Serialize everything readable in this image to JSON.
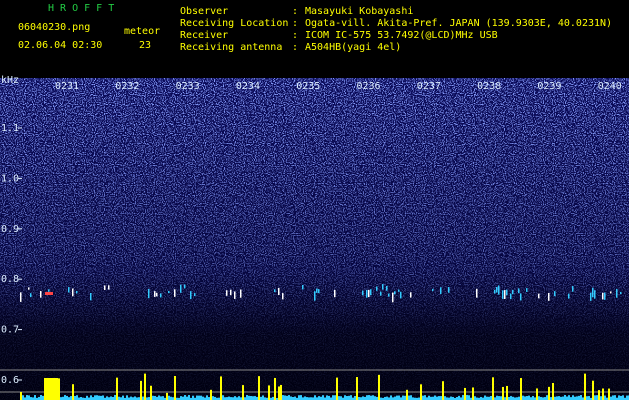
{
  "header": {
    "title": "H R O F F T",
    "file": "06040230.png",
    "datetime": "02.06.04 02:30",
    "meteor_label": "meteor",
    "meteor_count": "23"
  },
  "station": {
    "separator": ":",
    "rows": [
      {
        "label": "Observer",
        "value": "Masayuki Kobayashi"
      },
      {
        "label": "Receiving Location",
        "value": "Ogata-vill. Akita-Pref. JAPAN (139.9303E, 40.0231N)"
      },
      {
        "label": "Receiver",
        "value": "ICOM IC-575 53.7492(@LCD)MHz USB"
      },
      {
        "label": "Receiving antenna",
        "value": "A504HB(yagi 4el)"
      }
    ]
  },
  "axis": {
    "unit": "kHz",
    "y_labels": [
      "1.1",
      "1.0",
      "0.9",
      "0.8",
      "0.7",
      "0.6"
    ],
    "x_labels": [
      "0231",
      "0232",
      "0233",
      "0234",
      "0235",
      "0236",
      "0237",
      "0238",
      "0239",
      "0240"
    ]
  }
}
